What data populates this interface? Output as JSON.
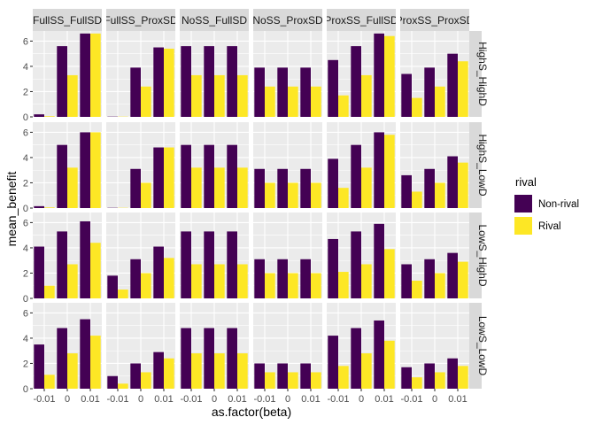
{
  "chart_data": {
    "type": "bar",
    "xlabel": "as.factor(beta)",
    "ylabel": "mean_benefit",
    "ylim": [
      0,
      6.8
    ],
    "yticks": [
      0,
      2,
      4,
      6
    ],
    "categories": [
      "-0.01",
      "0",
      "0.01"
    ],
    "colors": {
      "Non-rival": "#440154",
      "Rival": "#fde725"
    },
    "grid": true,
    "legend": {
      "title": "rival",
      "position": "right",
      "entries": [
        "Non-rival",
        "Rival"
      ]
    },
    "col_facets": [
      "FullSS_FullSD",
      "FullSS_ProxSD",
      "NoSS_FullSD",
      "NoSS_ProxSD",
      "ProxSS_FullSD",
      "ProxSS_ProxSD"
    ],
    "row_facets": [
      "HighS_HighD",
      "HighS_LowD",
      "LowS_HighD",
      "LowS_LowD"
    ],
    "panels": [
      [
        {
          "nonrival": [
            0.2,
            5.6,
            6.6
          ],
          "rival": [
            0.05,
            3.3,
            6.6
          ]
        },
        {
          "nonrival": [
            0.02,
            3.9,
            5.5
          ],
          "rival": [
            0.02,
            2.4,
            5.4
          ]
        },
        {
          "nonrival": [
            5.6,
            5.6,
            5.6
          ],
          "rival": [
            3.3,
            3.3,
            3.3
          ]
        },
        {
          "nonrival": [
            3.9,
            3.9,
            3.9
          ],
          "rival": [
            2.4,
            2.4,
            2.4
          ]
        },
        {
          "nonrival": [
            4.5,
            5.6,
            6.6
          ],
          "rival": [
            1.7,
            3.3,
            6.4
          ]
        },
        {
          "nonrival": [
            3.4,
            3.9,
            5.0
          ],
          "rival": [
            1.5,
            2.4,
            4.4
          ]
        }
      ],
      [
        {
          "nonrival": [
            0.15,
            5.0,
            6.0
          ],
          "rival": [
            0.05,
            3.2,
            6.0
          ]
        },
        {
          "nonrival": [
            0.02,
            3.1,
            4.8
          ],
          "rival": [
            0.02,
            2.0,
            4.8
          ]
        },
        {
          "nonrival": [
            5.0,
            5.0,
            5.0
          ],
          "rival": [
            3.2,
            3.2,
            3.2
          ]
        },
        {
          "nonrival": [
            3.1,
            3.1,
            3.1
          ],
          "rival": [
            2.0,
            2.0,
            2.0
          ]
        },
        {
          "nonrival": [
            3.9,
            5.0,
            6.0
          ],
          "rival": [
            1.6,
            3.2,
            5.8
          ]
        },
        {
          "nonrival": [
            2.6,
            3.1,
            4.1
          ],
          "rival": [
            1.3,
            2.0,
            3.6
          ]
        }
      ],
      [
        {
          "nonrival": [
            4.1,
            5.3,
            6.1
          ],
          "rival": [
            1.0,
            2.7,
            4.4
          ]
        },
        {
          "nonrival": [
            1.8,
            3.1,
            4.1
          ],
          "rival": [
            0.7,
            2.0,
            3.2
          ]
        },
        {
          "nonrival": [
            5.3,
            5.3,
            5.3
          ],
          "rival": [
            2.7,
            2.7,
            2.7
          ]
        },
        {
          "nonrival": [
            3.1,
            3.1,
            3.1
          ],
          "rival": [
            2.0,
            2.0,
            2.0
          ]
        },
        {
          "nonrival": [
            4.7,
            5.3,
            5.9
          ],
          "rival": [
            2.1,
            2.7,
            3.9
          ]
        },
        {
          "nonrival": [
            2.7,
            3.1,
            3.6
          ],
          "rival": [
            1.4,
            2.0,
            2.9
          ]
        }
      ],
      [
        {
          "nonrival": [
            3.5,
            4.8,
            5.5
          ],
          "rival": [
            1.1,
            2.8,
            4.2
          ]
        },
        {
          "nonrival": [
            1.0,
            2.0,
            2.9
          ],
          "rival": [
            0.4,
            1.3,
            2.4
          ]
        },
        {
          "nonrival": [
            4.8,
            4.8,
            4.8
          ],
          "rival": [
            2.8,
            2.8,
            2.8
          ]
        },
        {
          "nonrival": [
            2.0,
            2.0,
            2.0
          ],
          "rival": [
            1.3,
            1.3,
            1.3
          ]
        },
        {
          "nonrival": [
            4.2,
            4.8,
            5.4
          ],
          "rival": [
            1.8,
            2.8,
            3.8
          ]
        },
        {
          "nonrival": [
            1.7,
            2.0,
            2.4
          ],
          "rival": [
            0.9,
            1.3,
            1.8
          ]
        }
      ]
    ]
  }
}
